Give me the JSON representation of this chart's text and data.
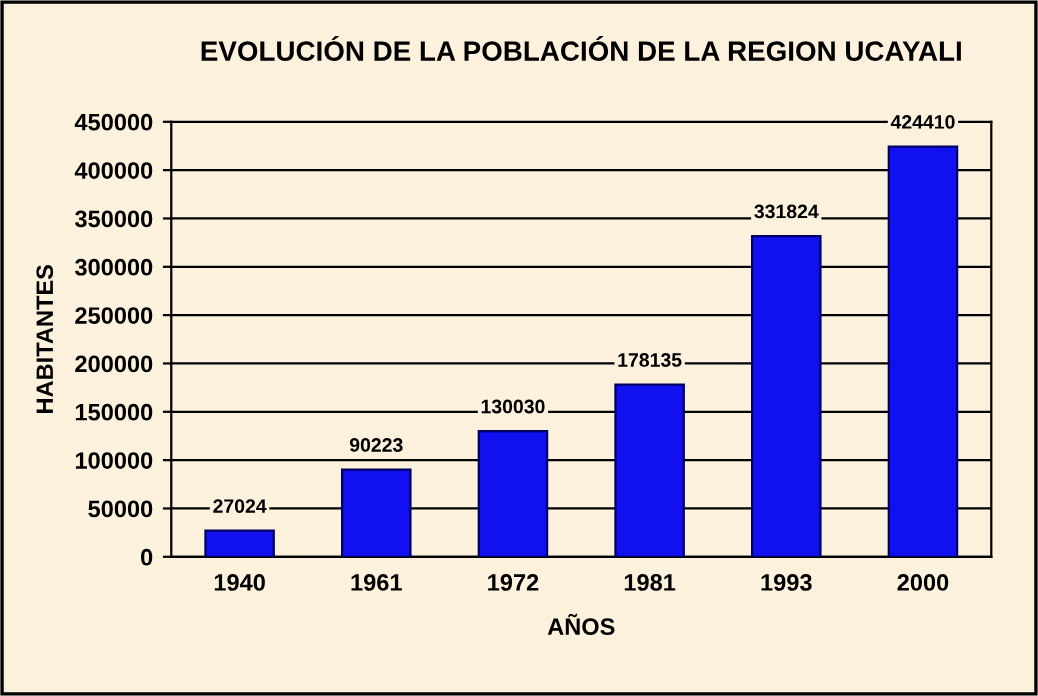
{
  "chart_data": {
    "type": "bar",
    "title": "EVOLUCIÓN DE LA POBLACIÓN DE LA REGION UCAYALI",
    "xlabel": "AÑOS",
    "ylabel": "HABITANTES",
    "categories": [
      "1940",
      "1961",
      "1972",
      "1981",
      "1993",
      "2000"
    ],
    "values": [
      27024,
      90223,
      130030,
      178135,
      331824,
      424410
    ],
    "color": "#1010f0",
    "ylim": [
      0,
      450000
    ],
    "yticks": [
      0,
      50000,
      100000,
      150000,
      200000,
      250000,
      300000,
      350000,
      400000,
      450000
    ],
    "grid": "y",
    "data_labels": true
  }
}
